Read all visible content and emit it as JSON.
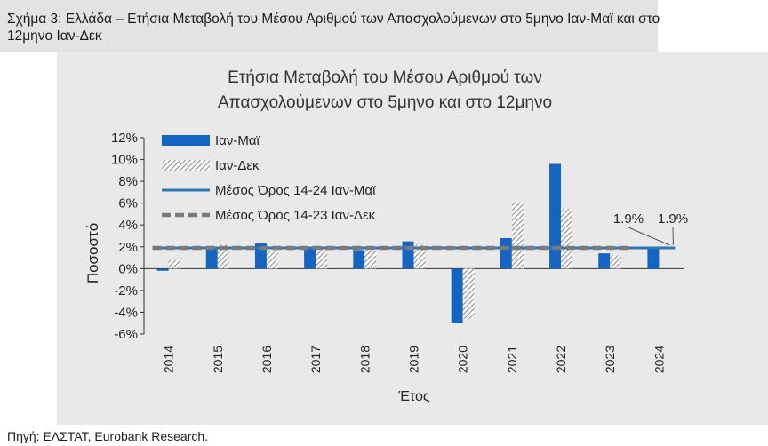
{
  "figure": {
    "caption": "Σχήμα 3: Ελλάδα – Ετήσια Μεταβολή του Μέσου Αριθμού των Απασχολούμενων στο 5μηνο Ιαν-Μαϊ και στο 12μηνο Ιαν-Δεκ",
    "source": "Πηγή: ΕΛΣΤΑΤ, Eurobank Research."
  },
  "colors": {
    "bar_primary": "#1565c0",
    "bar_hatched": "#8c8c8c",
    "avg_line_primary": "#2e75b6",
    "avg_line_dashed": "#7a7a7a",
    "panel_bg": "#e9e9e9",
    "caption_bg": "#e3e3e3"
  },
  "chart_data": {
    "type": "bar",
    "title_line1": "Ετήσια Μεταβολή του Μέσου Αριθμού των",
    "title_line2": "Απασχολούμενων στο 5μηνο και στο 12μηνο",
    "xlabel": "Έτος",
    "ylabel": "Ποσοστό",
    "ylim": [
      -6,
      12
    ],
    "y_ticks": [
      "-6%",
      "-4%",
      "-2%",
      "0%",
      "2%",
      "4%",
      "6%",
      "8%",
      "10%",
      "12%"
    ],
    "y_tick_values": [
      -6,
      -4,
      -2,
      0,
      2,
      4,
      6,
      8,
      10,
      12
    ],
    "categories": [
      "2014",
      "2015",
      "2016",
      "2017",
      "2018",
      "2019",
      "2020",
      "2021",
      "2022",
      "2023",
      "2024"
    ],
    "series": [
      {
        "name": "Ιαν-Μαϊ",
        "values": [
          -0.2,
          1.9,
          2.3,
          1.9,
          1.7,
          2.5,
          -5.0,
          2.8,
          9.6,
          1.4,
          1.9
        ]
      },
      {
        "name": "Ιαν-Δεκ",
        "values": [
          0.8,
          2.2,
          1.6,
          2.0,
          1.8,
          2.2,
          -4.6,
          6.1,
          5.5,
          1.2,
          null
        ]
      }
    ],
    "averages": [
      {
        "name": "Μέσος Όρος 14-24 Ιαν-Μαϊ",
        "value": 1.9
      },
      {
        "name": "Μέσος Όρος 14-23 Ιαν-Δεκ",
        "value": 1.9
      }
    ],
    "annotations": [
      "1.9%",
      "1.9%"
    ],
    "legend_position": "top-left",
    "grid": false
  }
}
